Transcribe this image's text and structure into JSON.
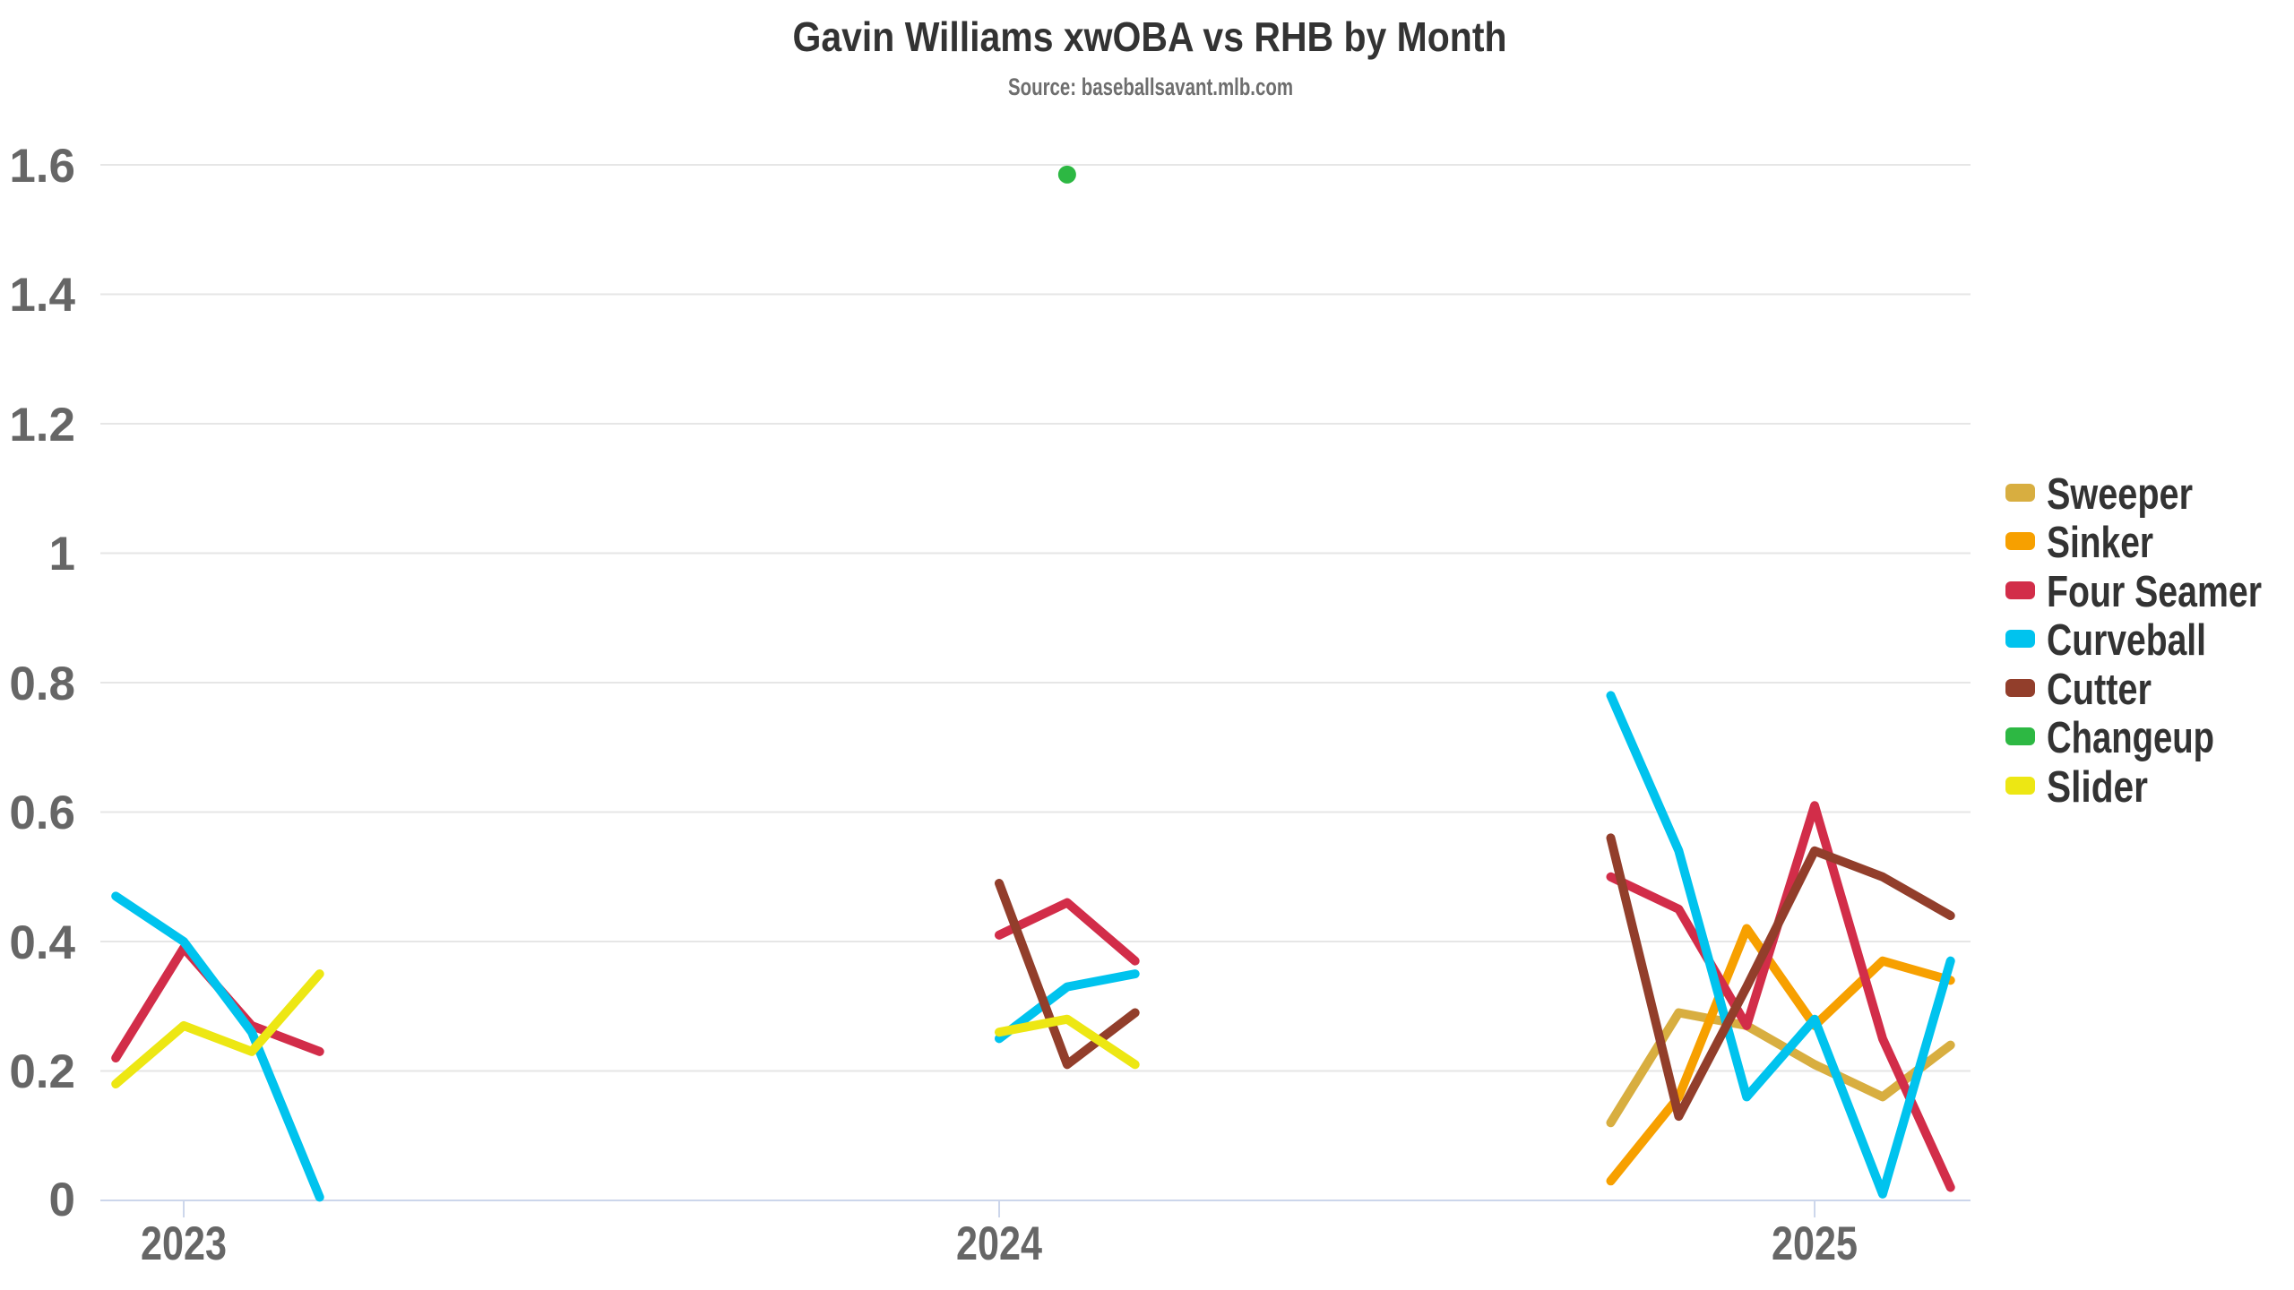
{
  "chart_data": {
    "type": "line",
    "title": "Gavin Williams xwOBA vs RHB by Month",
    "subtitle": "Source: baseballsavant.mlb.com",
    "xlabel": "",
    "ylabel": "",
    "ylim": [
      0,
      1.6
    ],
    "grid": "horizontal",
    "legend_position": "right",
    "yticks": [
      "0",
      "0.2",
      "0.4",
      "0.6",
      "0.8",
      "1",
      "1.2",
      "1.4",
      "1.6"
    ],
    "x_tick_labels": [
      "2023",
      "2024",
      "2025"
    ],
    "x_tick_months": [
      "2023-07",
      "2024-07",
      "2025-07"
    ],
    "series": [
      {
        "name": "Sweeper",
        "color": "#D8AE40",
        "segments": [
          [
            [
              "2025-04",
              0.12
            ],
            [
              "2025-05",
              0.29
            ],
            [
              "2025-06",
              0.27
            ],
            [
              "2025-07",
              0.21
            ],
            [
              "2025-08",
              0.16
            ],
            [
              "2025-09",
              0.24
            ]
          ]
        ]
      },
      {
        "name": "Sinker",
        "color": "#F7A000",
        "segments": [
          [
            [
              "2025-04",
              0.03
            ],
            [
              "2025-05",
              0.16
            ],
            [
              "2025-06",
              0.42
            ],
            [
              "2025-07",
              0.27
            ],
            [
              "2025-08",
              0.37
            ],
            [
              "2025-09",
              0.34
            ]
          ]
        ]
      },
      {
        "name": "Four Seamer",
        "color": "#D22D49",
        "segments": [
          [
            [
              "2023-06",
              0.22
            ],
            [
              "2023-07",
              0.39
            ],
            [
              "2023-08",
              0.27
            ],
            [
              "2023-09",
              0.23
            ]
          ],
          [
            [
              "2024-07",
              0.41
            ],
            [
              "2024-08",
              0.46
            ],
            [
              "2024-09",
              0.37
            ]
          ],
          [
            [
              "2025-04",
              0.5
            ],
            [
              "2025-05",
              0.45
            ],
            [
              "2025-06",
              0.27
            ],
            [
              "2025-07",
              0.61
            ],
            [
              "2025-08",
              0.25
            ],
            [
              "2025-09",
              0.02
            ]
          ]
        ]
      },
      {
        "name": "Curveball",
        "color": "#00C3EE",
        "segments": [
          [
            [
              "2023-06",
              0.47
            ],
            [
              "2023-07",
              0.4
            ],
            [
              "2023-08",
              0.26
            ],
            [
              "2023-09",
              0.005
            ]
          ],
          [
            [
              "2024-07",
              0.25
            ],
            [
              "2024-08",
              0.33
            ],
            [
              "2024-09",
              0.35
            ]
          ],
          [
            [
              "2025-04",
              0.78
            ],
            [
              "2025-05",
              0.54
            ],
            [
              "2025-06",
              0.16
            ],
            [
              "2025-07",
              0.28
            ],
            [
              "2025-08",
              0.01
            ],
            [
              "2025-09",
              0.37
            ]
          ]
        ]
      },
      {
        "name": "Cutter",
        "color": "#923E2B",
        "segments": [
          [
            [
              "2024-07",
              0.49
            ],
            [
              "2024-08",
              0.21
            ],
            [
              "2024-09",
              0.29
            ]
          ],
          [
            [
              "2025-04",
              0.56
            ],
            [
              "2025-05",
              0.13
            ],
            [
              "2025-06",
              0.33
            ],
            [
              "2025-07",
              0.54
            ],
            [
              "2025-08",
              0.5
            ],
            [
              "2025-09",
              0.44
            ]
          ]
        ]
      },
      {
        "name": "Changeup",
        "color": "#2DB843",
        "segments": [
          [
            [
              "2024-08",
              1.585
            ]
          ]
        ]
      },
      {
        "name": "Slider",
        "color": "#EDE713",
        "segments": [
          [
            [
              "2023-06",
              0.18
            ],
            [
              "2023-07",
              0.27
            ],
            [
              "2023-08",
              0.23
            ],
            [
              "2023-09",
              0.35
            ]
          ],
          [
            [
              "2024-07",
              0.26
            ],
            [
              "2024-08",
              0.28
            ],
            [
              "2024-09",
              0.21
            ]
          ]
        ]
      }
    ],
    "colors": {
      "title": "#333333",
      "subtitle": "#6e6e6e",
      "axis_labels": "#666666",
      "legend_text": "#333333",
      "gridline": "#e6e6e6",
      "axis_line": "#ccd6eb",
      "background": "#ffffff"
    }
  }
}
